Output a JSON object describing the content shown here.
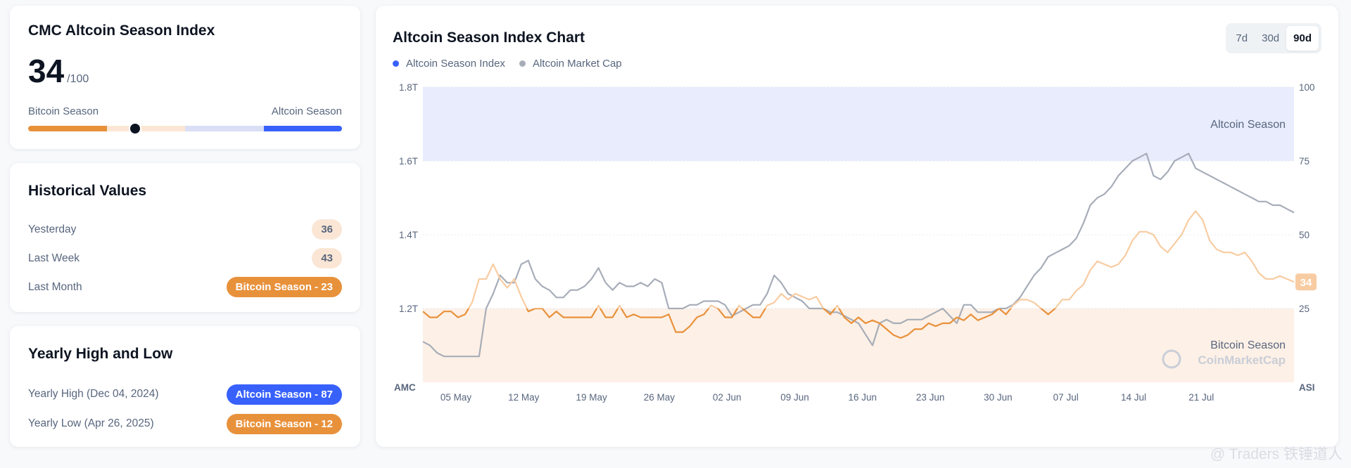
{
  "index_card": {
    "title": "CMC Altcoin Season Index",
    "value": "34",
    "max": "/100",
    "left_label": "Bitcoin Season",
    "right_label": "Altcoin Season",
    "current": 34,
    "colors": {
      "bitcoin": "#e8913b",
      "bitcoin_light": "#fbe6d5",
      "altcoin_light": "#dadff5",
      "altcoin": "#3861fb"
    }
  },
  "historical": {
    "title": "Historical Values",
    "rows": [
      {
        "label": "Yesterday",
        "value": "36"
      },
      {
        "label": "Last Week",
        "value": "43"
      },
      {
        "label": "Last Month",
        "value": "Bitcoin Season - 23"
      }
    ]
  },
  "yearly": {
    "title": "Yearly High and Low",
    "rows": [
      {
        "label": "Yearly High",
        "date": "(Dec 04, 2024)",
        "value": "Altcoin Season - 87"
      },
      {
        "label": "Yearly Low",
        "date": "(Apr 26, 2025)",
        "value": "Bitcoin Season - 12"
      }
    ]
  },
  "chart_card": {
    "title": "Altcoin Season Index Chart",
    "tabs": [
      "7d",
      "30d",
      "90d"
    ],
    "active_tab": "90d"
  },
  "watermark": "@ Traders 铁锤道人",
  "chart_data": {
    "type": "line",
    "title": "Altcoin Season Index Chart",
    "legend": [
      "Altcoin Season Index",
      "Altcoin Market Cap"
    ],
    "left_axis_title": "AMC",
    "right_axis_title": "ASI",
    "left_ticks": [
      "1.8T",
      "1.6T",
      "1.4T",
      "1.2T"
    ],
    "right_ticks": [
      "100",
      "75",
      "50",
      "25"
    ],
    "left_range": [
      1.0,
      1.8
    ],
    "right_range": [
      0,
      100
    ],
    "x_ticks": [
      "05 May",
      "12 May",
      "19 May",
      "26 May",
      "02 Jun",
      "09 Jun",
      "16 Jun",
      "23 Jun",
      "30 Jun",
      "07 Jul",
      "14 Jul",
      "21 Jul"
    ],
    "zones": [
      {
        "label": "Altcoin Season",
        "from": 75,
        "to": 100
      },
      {
        "label": "Bitcoin Season",
        "from": 0,
        "to": 25
      }
    ],
    "zone_watermark": "CoinMarketCap",
    "current_label": "34",
    "colors": {
      "index": "#e8913b",
      "index_light": "#f8cca2",
      "market_cap": "#a7adb8",
      "legend_index": "#3861fb"
    },
    "series": [
      {
        "name": "Altcoin Season Index",
        "values": [
          24,
          22,
          22,
          24,
          24,
          22,
          23,
          27,
          35,
          35,
          40,
          35,
          32,
          35,
          29,
          24,
          25,
          25,
          22,
          24,
          22,
          22,
          22,
          22,
          22,
          26,
          22,
          22,
          26,
          22,
          23,
          22,
          22,
          22,
          22,
          23,
          17,
          17,
          19,
          22,
          23,
          26,
          25,
          22,
          22,
          26,
          24,
          22,
          22,
          26,
          27,
          30,
          28,
          30,
          29,
          28,
          29,
          25,
          23,
          26,
          22,
          20,
          22,
          20,
          21,
          20,
          18,
          16,
          15,
          16,
          18,
          18,
          20,
          19,
          20,
          20,
          22,
          21,
          23,
          21,
          22,
          23,
          25,
          23,
          26,
          28,
          28,
          27,
          25,
          23,
          25,
          28,
          28,
          31,
          33,
          38,
          41,
          40,
          39,
          40,
          43,
          48,
          51,
          51,
          50,
          46,
          44,
          47,
          50,
          55,
          58,
          55,
          48,
          45,
          44,
          44,
          43,
          44,
          41,
          37,
          35,
          35,
          36,
          35,
          34
        ]
      },
      {
        "name": "Altcoin Market Cap",
        "values": [
          1.11,
          1.1,
          1.08,
          1.07,
          1.07,
          1.07,
          1.07,
          1.07,
          1.07,
          1.2,
          1.24,
          1.29,
          1.27,
          1.27,
          1.32,
          1.33,
          1.28,
          1.26,
          1.25,
          1.23,
          1.23,
          1.25,
          1.25,
          1.26,
          1.28,
          1.31,
          1.27,
          1.25,
          1.27,
          1.26,
          1.26,
          1.27,
          1.26,
          1.28,
          1.27,
          1.2,
          1.2,
          1.2,
          1.21,
          1.21,
          1.22,
          1.22,
          1.22,
          1.21,
          1.18,
          1.19,
          1.2,
          1.21,
          1.21,
          1.24,
          1.29,
          1.27,
          1.24,
          1.23,
          1.22,
          1.2,
          1.2,
          1.2,
          1.19,
          1.19,
          1.18,
          1.17,
          1.16,
          1.13,
          1.1,
          1.16,
          1.17,
          1.16,
          1.16,
          1.17,
          1.17,
          1.17,
          1.18,
          1.19,
          1.2,
          1.18,
          1.16,
          1.21,
          1.21,
          1.19,
          1.19,
          1.19,
          1.2,
          1.2,
          1.21,
          1.23,
          1.26,
          1.29,
          1.31,
          1.34,
          1.35,
          1.36,
          1.37,
          1.39,
          1.43,
          1.48,
          1.5,
          1.51,
          1.53,
          1.56,
          1.58,
          1.6,
          1.61,
          1.62,
          1.56,
          1.55,
          1.57,
          1.6,
          1.61,
          1.62,
          1.58,
          1.57,
          1.56,
          1.55,
          1.54,
          1.53,
          1.52,
          1.51,
          1.5,
          1.49,
          1.49,
          1.48,
          1.48,
          1.47,
          1.46
        ]
      }
    ]
  }
}
